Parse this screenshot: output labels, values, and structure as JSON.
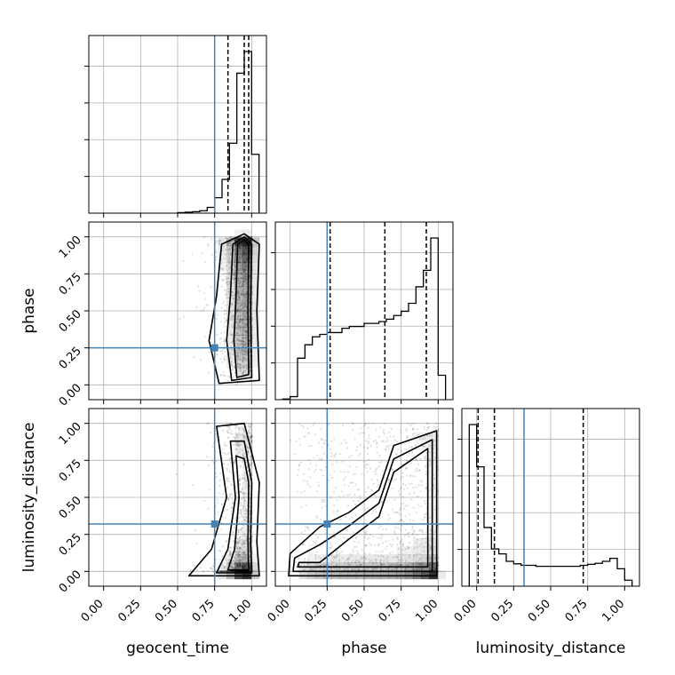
{
  "truth_color": "#4682b4",
  "chart_data": {
    "type": "corner",
    "parameters": [
      "geocent_time",
      "phase",
      "luminosity_distance"
    ],
    "axis_range": [
      -0.1,
      1.1
    ],
    "ticks": [
      0.0,
      0.25,
      0.5,
      0.75,
      1.0
    ],
    "tick_labels": [
      "0.00",
      "0.25",
      "0.50",
      "0.75",
      "1.00"
    ],
    "grid": true,
    "truths": [
      0.75,
      0.25,
      0.32
    ],
    "quantiles": [
      [
        0.84,
        0.95,
        0.98
      ],
      [
        0.27,
        0.64,
        0.92
      ],
      [
        0.01,
        0.12,
        0.72
      ]
    ],
    "histograms": [
      {
        "param": "geocent_time",
        "bin_edges": [
          0.5,
          0.55,
          0.6,
          0.65,
          0.7,
          0.75,
          0.8,
          0.85,
          0.9,
          0.95,
          1.0,
          1.05
        ],
        "values": [
          1,
          2,
          3,
          5,
          12,
          32,
          70,
          145,
          290,
          335,
          122
        ]
      },
      {
        "param": "phase",
        "bin_edges": [
          -0.05,
          0,
          0.05,
          0.1,
          0.15,
          0.2,
          0.25,
          0.3,
          0.35,
          0.4,
          0.45,
          0.5,
          0.55,
          0.6,
          0.65,
          0.7,
          0.75,
          0.8,
          0.85,
          0.9,
          0.95,
          1.0,
          1.05
        ],
        "values": [
          1,
          5,
          68,
          90,
          103,
          107,
          110,
          110,
          117,
          120,
          120,
          125,
          125,
          128,
          132,
          138,
          145,
          158,
          185,
          212,
          265,
          40
        ]
      },
      {
        "param": "luminosity_distance",
        "bin_edges": [
          -0.05,
          0,
          0.05,
          0.1,
          0.15,
          0.2,
          0.25,
          0.3,
          0.35,
          0.4,
          0.45,
          0.5,
          0.55,
          0.6,
          0.65,
          0.7,
          0.75,
          0.8,
          0.85,
          0.9,
          0.95,
          1.0,
          1.05
        ],
        "values": [
          325,
          240,
          118,
          75,
          65,
          50,
          45,
          42,
          42,
          40,
          40,
          40,
          40,
          40,
          40,
          42,
          44,
          46,
          50,
          56,
          35,
          12
        ]
      }
    ],
    "pairs": [
      {
        "x": "geocent_time",
        "y": "phase",
        "row": 1,
        "col": 0
      },
      {
        "x": "geocent_time",
        "y": "luminosity_distance",
        "row": 2,
        "col": 0
      },
      {
        "x": "phase",
        "y": "luminosity_distance",
        "row": 2,
        "col": 1
      }
    ]
  }
}
